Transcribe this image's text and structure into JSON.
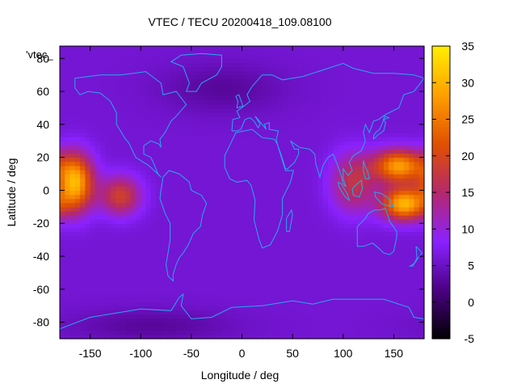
{
  "chart_data": {
    "type": "heatmap",
    "title": "VTEC / TECU 20200418_109.08100",
    "xlabel": "Longitude / deg",
    "ylabel": "Latitude / deg",
    "xlim": [
      -180,
      180
    ],
    "ylim": [
      -90,
      87.5
    ],
    "xticks": [
      -150,
      -100,
      -50,
      0,
      50,
      100,
      150
    ],
    "yticks": [
      -80,
      -60,
      -40,
      -20,
      0,
      20,
      40,
      60,
      80
    ],
    "colorbar": {
      "range": [
        -5,
        35
      ],
      "ticks": [
        -5,
        0,
        5,
        10,
        15,
        20,
        25,
        30,
        35
      ],
      "palette": [
        "#000000",
        "#4b0082",
        "#8a22ff",
        "#b4286e",
        "#e05000",
        "#ff9f00",
        "#ffee00"
      ]
    },
    "legend_label": "'vtec_",
    "background_level": 6,
    "features": [
      {
        "name": "pacific-crest-east",
        "lon": -165,
        "lat": 5,
        "peak": 30,
        "lon_halfwidth": 18,
        "lat_halfwidth": 17
      },
      {
        "name": "pacific-crest-east-tail",
        "lon": -120,
        "lat": -3,
        "peak": 19,
        "lon_halfwidth": 20,
        "lat_halfwidth": 12
      },
      {
        "name": "asia-crest-north",
        "lon": 155,
        "lat": 15,
        "peak": 28,
        "lon_halfwidth": 25,
        "lat_halfwidth": 10
      },
      {
        "name": "australia-crest-south",
        "lon": 160,
        "lat": -8,
        "peak": 30,
        "lon_halfwidth": 22,
        "lat_halfwidth": 10
      },
      {
        "name": "indonesia-west-tail",
        "lon": 110,
        "lat": 5,
        "peak": 17,
        "lon_halfwidth": 22,
        "lat_halfwidth": 18
      },
      {
        "name": "polar-low-north",
        "lon": -20,
        "lat": 62,
        "peak": 3,
        "lon_halfwidth": 60,
        "lat_halfwidth": 15
      },
      {
        "name": "polar-low-south",
        "lon": -90,
        "lat": -82,
        "peak": 3,
        "lon_halfwidth": 80,
        "lat_halfwidth": 10
      }
    ]
  }
}
